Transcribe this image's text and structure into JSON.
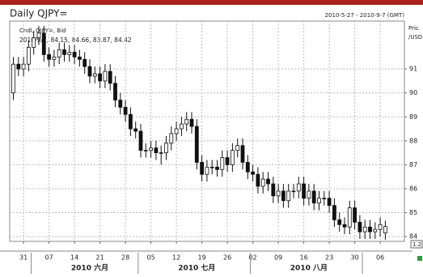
{
  "chart_data": {
    "type": "candlestick",
    "title": "Daily QJPY=",
    "date_range": "2010-5-27 - 2010-9-7 (GMT)",
    "legend_lines": [
      "Cndl, QJPY=, Bid",
      "2010/9/7, 84.15, 84.66, 83.87, 84.42"
    ],
    "y_axis_label": [
      "Pric",
      "/USD"
    ],
    "corner_label": "1.2",
    "month_labels": [
      "2010 六月",
      "2010 七月",
      "2010 八月"
    ],
    "categories": [
      null,
      null,
      "31",
      null,
      null,
      null,
      null,
      "07",
      null,
      null,
      null,
      null,
      "14",
      null,
      null,
      null,
      null,
      "21",
      null,
      null,
      null,
      null,
      "28",
      null,
      null,
      null,
      null,
      "05",
      null,
      null,
      null,
      null,
      "12",
      null,
      null,
      null,
      null,
      "19",
      null,
      null,
      null,
      null,
      "26",
      null,
      null,
      null,
      null,
      "02",
      null,
      null,
      null,
      null,
      "09",
      null,
      null,
      null,
      null,
      "16",
      null,
      null,
      null,
      null,
      "23",
      null,
      null,
      null,
      null,
      "30",
      null,
      null,
      null,
      null,
      "06",
      null
    ],
    "open": [
      90.0,
      91.2,
      91.0,
      91.2,
      91.9,
      92.3,
      92.5,
      91.6,
      91.4,
      91.5,
      91.8,
      91.6,
      91.7,
      91.5,
      91.4,
      91.1,
      90.7,
      90.8,
      90.5,
      90.9,
      90.4,
      89.7,
      89.4,
      89.1,
      88.5,
      88.4,
      87.6,
      87.6,
      87.7,
      87.5,
      87.5,
      87.9,
      88.3,
      88.5,
      88.7,
      88.9,
      88.6,
      87.1,
      86.6,
      86.9,
      86.9,
      86.8,
      87.3,
      87.0,
      87.6,
      87.8,
      87.1,
      86.7,
      86.6,
      86.1,
      86.4,
      86.2,
      85.7,
      85.9,
      85.5,
      85.9,
      85.9,
      86.2,
      85.6,
      85.9,
      85.4,
      85.6,
      85.6,
      85.3,
      84.7,
      84.5,
      84.4,
      85.2,
      84.6,
      84.2,
      84.4,
      84.2,
      84.3,
      84.15
    ],
    "high": [
      91.5,
      91.5,
      91.5,
      92.2,
      92.6,
      92.8,
      92.8,
      91.9,
      91.8,
      92.1,
      92.1,
      92.0,
      92.0,
      91.8,
      91.7,
      91.4,
      91.1,
      91.1,
      91.2,
      91.2,
      90.7,
      90.0,
      89.7,
      89.4,
      88.8,
      88.7,
      87.9,
      88.0,
      88.0,
      87.8,
      88.2,
      88.6,
      88.8,
      89.0,
      89.2,
      89.2,
      88.9,
      87.4,
      87.2,
      87.2,
      87.2,
      87.6,
      87.6,
      87.9,
      88.1,
      88.1,
      87.4,
      87.0,
      86.9,
      86.7,
      86.7,
      86.5,
      86.2,
      86.2,
      86.2,
      86.2,
      86.5,
      86.5,
      86.2,
      86.2,
      85.9,
      85.9,
      85.9,
      85.6,
      85.0,
      84.8,
      85.5,
      85.5,
      84.9,
      84.7,
      84.7,
      84.6,
      84.8,
      84.66
    ],
    "low": [
      89.7,
      90.7,
      90.7,
      90.9,
      91.6,
      92.0,
      91.3,
      91.1,
      91.1,
      91.2,
      91.3,
      91.3,
      91.2,
      91.1,
      90.8,
      90.4,
      90.4,
      90.2,
      90.2,
      90.1,
      89.4,
      89.1,
      88.8,
      88.2,
      88.1,
      87.3,
      87.3,
      87.3,
      87.2,
      87.0,
      87.2,
      87.6,
      88.0,
      88.2,
      88.4,
      88.3,
      86.8,
      86.3,
      86.3,
      86.6,
      86.5,
      86.5,
      86.7,
      86.7,
      87.3,
      86.8,
      86.4,
      86.3,
      85.8,
      85.8,
      85.9,
      85.4,
      85.4,
      85.2,
      85.2,
      85.6,
      85.6,
      85.3,
      85.3,
      85.1,
      85.1,
      85.3,
      85.0,
      84.4,
      84.2,
      84.1,
      84.1,
      84.3,
      83.9,
      83.9,
      83.9,
      83.9,
      84.0,
      83.87
    ],
    "close": [
      91.2,
      91.0,
      91.2,
      91.9,
      92.3,
      92.5,
      91.6,
      91.4,
      91.5,
      91.8,
      91.6,
      91.7,
      91.5,
      91.4,
      91.1,
      90.7,
      90.8,
      90.5,
      90.9,
      90.4,
      89.7,
      89.4,
      89.1,
      88.5,
      88.4,
      87.6,
      87.6,
      87.7,
      87.5,
      87.5,
      87.9,
      88.3,
      88.5,
      88.7,
      88.9,
      88.6,
      87.1,
      86.6,
      86.9,
      86.9,
      86.8,
      87.3,
      87.0,
      87.6,
      87.8,
      87.1,
      86.7,
      86.6,
      86.1,
      86.4,
      86.2,
      85.7,
      85.9,
      85.5,
      85.9,
      85.9,
      86.2,
      85.6,
      85.9,
      85.4,
      85.6,
      85.6,
      85.3,
      84.7,
      84.5,
      84.4,
      85.2,
      84.6,
      84.2,
      84.4,
      84.2,
      84.3,
      84.5,
      84.42
    ],
    "up_color": "#ffffff",
    "down_color": "#111111",
    "outline_color": "#111111",
    "ylim": [
      83.8,
      93.0
    ],
    "yticks": [
      84,
      85,
      86,
      87,
      88,
      89,
      90,
      91
    ],
    "grid": true
  }
}
